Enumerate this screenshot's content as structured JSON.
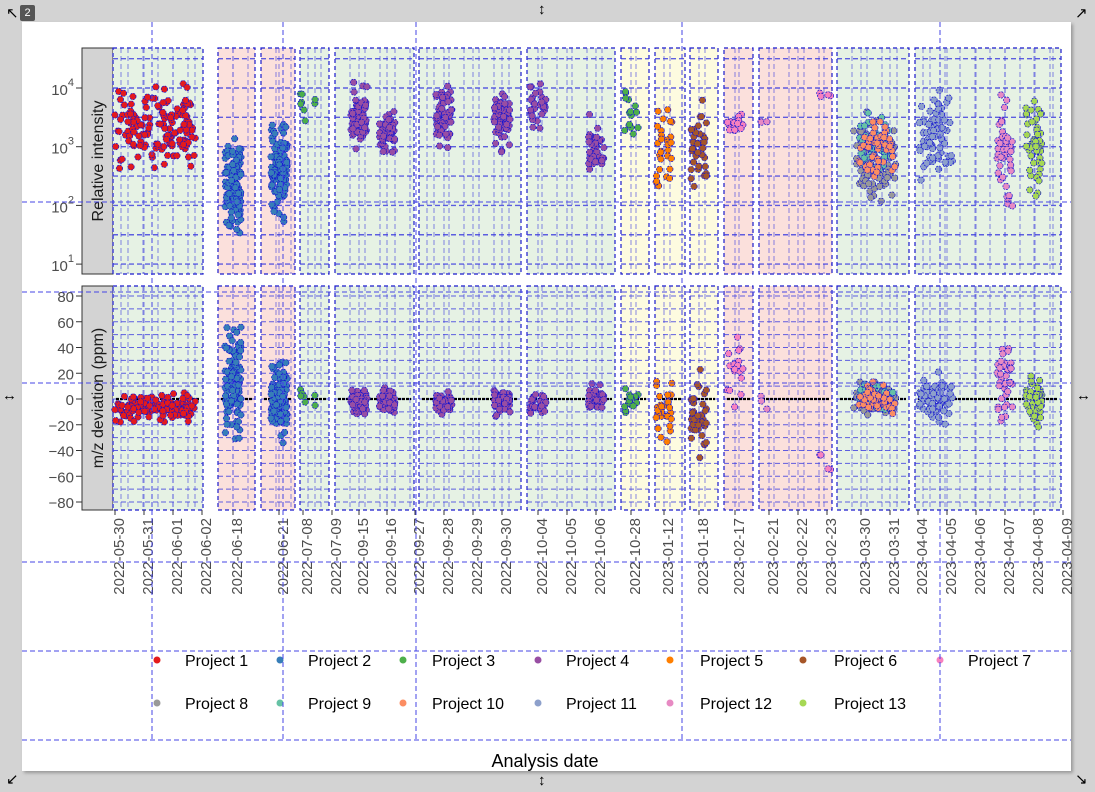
{
  "editor": {
    "badge": "2"
  },
  "chart_data": {
    "type": "scatter",
    "xlabel": "Analysis date",
    "facet_rows": [
      {
        "strip": "Relative intensity",
        "scale": "log10",
        "ylim_log10": [
          0.85,
          4.68
        ],
        "ticks": [
          {
            "base": "10",
            "exp": "4",
            "v": 4
          },
          {
            "base": "10",
            "exp": "3",
            "v": 3
          },
          {
            "base": "10",
            "exp": "2",
            "v": 2
          },
          {
            "base": "10",
            "exp": "1",
            "v": 1
          }
        ]
      },
      {
        "strip": "m/z deviation (ppm)",
        "scale": "linear",
        "ylim": [
          -86,
          88
        ],
        "ticks": [
          {
            "label": "80",
            "v": 80
          },
          {
            "label": "60",
            "v": 60
          },
          {
            "label": "40",
            "v": 40
          },
          {
            "label": "20",
            "v": 20
          },
          {
            "label": "0",
            "v": 0
          },
          {
            "label": "−20",
            "v": -20
          },
          {
            "label": "−40",
            "v": -40
          },
          {
            "label": "−60",
            "v": -60
          },
          {
            "label": "−80",
            "v": -80
          }
        ]
      }
    ],
    "facets": [
      {
        "dates": [
          "2022-05-30",
          "2022-05-31",
          "2022-06-01",
          "2022-06-02"
        ],
        "background": "#e6f2e4"
      },
      {
        "dates": [
          "2022-06-18"
        ],
        "background": "#fbe0dc"
      },
      {
        "dates": [
          "2022-06-21"
        ],
        "background": "#fbe0dc"
      },
      {
        "dates": [
          "2022-07-08",
          "2022-07-09"
        ],
        "background": "#e6f2e4"
      },
      {
        "dates": [
          "2022-09-15",
          "2022-09-16"
        ],
        "background": "#e6f2e4"
      },
      {
        "dates": [
          "2022-09-27",
          "2022-09-28",
          "2022-09-29",
          "2022-09-30"
        ],
        "background": "#e6f2e4"
      },
      {
        "dates": [
          "2022-10-04",
          "2022-10-05",
          "2022-10-06"
        ],
        "background": "#e6f2e4"
      },
      {
        "dates": [
          "2022-10-28"
        ],
        "background": "#fdfbe0"
      },
      {
        "dates": [
          "2023-01-12"
        ],
        "background": "#fdfbe0"
      },
      {
        "dates": [
          "2023-01-18"
        ],
        "background": "#fdfbe0"
      },
      {
        "dates": [
          "2023-02-17"
        ],
        "background": "#fbe0dc"
      },
      {
        "dates": [
          "2023-02-21",
          "2023-02-22",
          "2023-02-23"
        ],
        "background": "#fbe0dc"
      },
      {
        "dates": [
          "2023-03-30",
          "2023-03-31"
        ],
        "background": "#e6f2e4"
      },
      {
        "dates": [
          "2023-04-04",
          "2023-04-05",
          "2023-04-06",
          "2023-04-07",
          "2023-04-08",
          "2023-04-09"
        ],
        "background": "#e6f2e4"
      }
    ],
    "legend": [
      {
        "label": "Project 1",
        "color": "#e41a1c"
      },
      {
        "label": "Project 2",
        "color": "#377eb8"
      },
      {
        "label": "Project 3",
        "color": "#4daf4a"
      },
      {
        "label": "Project 4",
        "color": "#984ea3"
      },
      {
        "label": "Project 5",
        "color": "#ff7f00"
      },
      {
        "label": "Project 6",
        "color": "#a65628"
      },
      {
        "label": "Project 7",
        "color": "#f781bf"
      },
      {
        "label": "Project 8",
        "color": "#999999"
      },
      {
        "label": "Project 9",
        "color": "#66c2a5"
      },
      {
        "label": "Project 10",
        "color": "#fc8d62"
      },
      {
        "label": "Project 11",
        "color": "#8da0cb"
      },
      {
        "label": "Project 12",
        "color": "#e78ac3"
      },
      {
        "label": "Project 13",
        "color": "#a6d854"
      }
    ],
    "clusters": [
      {
        "dates": [
          "2022-05-30",
          "2022-06-02"
        ],
        "project": 1,
        "log10_intensity": [
          2.5,
          4.1
        ],
        "ppm": [
          -18,
          5
        ],
        "n": 150
      },
      {
        "dates": [
          "2022-06-18"
        ],
        "project": 2,
        "log10_intensity": [
          1.5,
          3.3
        ],
        "ppm": [
          -32,
          58
        ],
        "n": 110
      },
      {
        "dates": [
          "2022-06-21"
        ],
        "project": 2,
        "log10_intensity": [
          1.7,
          3.5
        ],
        "ppm": [
          -35,
          30
        ],
        "n": 110
      },
      {
        "dates": [
          "2022-07-08"
        ],
        "project": 3,
        "log10_intensity": [
          3.3,
          4.0
        ],
        "ppm": [
          -10,
          12
        ],
        "n": 8
      },
      {
        "dates": [
          "2022-09-15"
        ],
        "project": 4,
        "log10_intensity": [
          2.9,
          4.1
        ],
        "ppm": [
          -15,
          10
        ],
        "n": 60
      },
      {
        "dates": [
          "2022-09-16"
        ],
        "project": 4,
        "log10_intensity": [
          2.9,
          3.6
        ],
        "ppm": [
          -12,
          10
        ],
        "n": 60
      },
      {
        "dates": [
          "2022-09-28"
        ],
        "project": 4,
        "log10_intensity": [
          2.9,
          4.1
        ],
        "ppm": [
          -12,
          8
        ],
        "n": 60
      },
      {
        "dates": [
          "2022-09-30"
        ],
        "project": 4,
        "log10_intensity": [
          2.9,
          4.0
        ],
        "ppm": [
          -14,
          10
        ],
        "n": 70
      },
      {
        "dates": [
          "2022-10-04"
        ],
        "project": 4,
        "log10_intensity": [
          3.3,
          4.1
        ],
        "ppm": [
          -14,
          6
        ],
        "n": 30
      },
      {
        "dates": [
          "2022-10-06"
        ],
        "project": 4,
        "log10_intensity": [
          2.4,
          3.6
        ],
        "ppm": [
          -12,
          12
        ],
        "n": 40
      },
      {
        "dates": [
          "2022-10-28"
        ],
        "project": 3,
        "log10_intensity": [
          3.0,
          4.0
        ],
        "ppm": [
          -12,
          10
        ],
        "n": 15
      },
      {
        "dates": [
          "2023-01-12"
        ],
        "project": 5,
        "log10_intensity": [
          2.2,
          3.7
        ],
        "ppm": [
          -35,
          14
        ],
        "n": 30
      },
      {
        "dates": [
          "2023-01-18"
        ],
        "project": 6,
        "log10_intensity": [
          2.0,
          3.8
        ],
        "ppm": [
          -50,
          26
        ],
        "n": 40
      },
      {
        "dates": [
          "2023-02-17"
        ],
        "project": 7,
        "log10_intensity": [
          3.2,
          3.6
        ],
        "ppm": [
          -10,
          55
        ],
        "n": 20
      },
      {
        "dates": [
          "2023-02-21"
        ],
        "project": 12,
        "log10_intensity": [
          3.4,
          3.5
        ],
        "ppm": [
          -10,
          12
        ],
        "n": 3
      },
      {
        "dates": [
          "2023-02-23"
        ],
        "project": 7,
        "log10_intensity": [
          3.8,
          4.0
        ],
        "ppm": [
          -75,
          -20
        ],
        "n": 4
      },
      {
        "dates": [
          "2023-03-30",
          "2023-03-31"
        ],
        "project": 8,
        "log10_intensity": [
          1.9,
          3.7
        ],
        "ppm": [
          -15,
          15
        ],
        "n": 90
      },
      {
        "dates": [
          "2023-03-30",
          "2023-03-31"
        ],
        "project": 9,
        "log10_intensity": [
          2.3,
          3.6
        ],
        "ppm": [
          -12,
          12
        ],
        "n": 50
      },
      {
        "dates": [
          "2023-03-30",
          "2023-03-31"
        ],
        "project": 10,
        "log10_intensity": [
          2.3,
          3.6
        ],
        "ppm": [
          -15,
          14
        ],
        "n": 50
      },
      {
        "dates": [
          "2023-04-04",
          "2023-04-05"
        ],
        "project": 11,
        "log10_intensity": [
          2.4,
          4.0
        ],
        "ppm": [
          -20,
          22
        ],
        "n": 70
      },
      {
        "dates": [
          "2023-04-07"
        ],
        "project": 12,
        "log10_intensity": [
          1.9,
          3.9
        ],
        "ppm": [
          -18,
          45
        ],
        "n": 45
      },
      {
        "dates": [
          "2023-04-08"
        ],
        "project": 13,
        "log10_intensity": [
          2.0,
          4.0
        ],
        "ppm": [
          -22,
          22
        ],
        "n": 55
      }
    ]
  }
}
